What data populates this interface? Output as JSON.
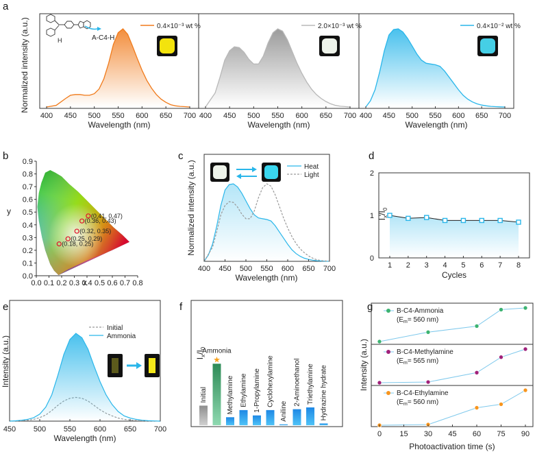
{
  "panel_labels": [
    "a",
    "b",
    "c",
    "d",
    "e",
    "f",
    "g"
  ],
  "chart_data": [
    {
      "id": "a",
      "type": "line",
      "ylabel": "Normalized intensity (a.u.)",
      "xlabel": "Wavelength (nm)",
      "xticks": [
        400,
        450,
        500,
        550,
        600,
        650,
        700
      ],
      "molecule_label": "H",
      "compound_label": "A-C4-H",
      "subplots": [
        {
          "legend": "0.4×10⁻³ wt %",
          "color": "#f07a1a",
          "emission_color": "#f3e30d",
          "x": [
            400,
            420,
            440,
            450,
            460,
            470,
            480,
            490,
            500,
            510,
            520,
            530,
            540,
            550,
            560,
            570,
            580,
            590,
            600,
            610,
            620,
            630,
            640,
            650,
            660,
            670,
            680,
            690,
            700
          ],
          "y": [
            0.0,
            0.02,
            0.11,
            0.15,
            0.16,
            0.16,
            0.15,
            0.15,
            0.17,
            0.23,
            0.36,
            0.56,
            0.8,
            0.95,
            1.0,
            0.93,
            0.78,
            0.62,
            0.47,
            0.34,
            0.24,
            0.16,
            0.1,
            0.06,
            0.03,
            0.015,
            0.008,
            0.004,
            0.0
          ]
        },
        {
          "legend": "2.0×10⁻³ wt %",
          "color": "#b8b8b8",
          "emission_color": "#eef3ea",
          "x": [
            400,
            420,
            430,
            440,
            450,
            460,
            470,
            480,
            490,
            500,
            510,
            520,
            530,
            540,
            550,
            560,
            570,
            580,
            590,
            600,
            610,
            620,
            630,
            640,
            650,
            660,
            670,
            680,
            690,
            700
          ],
          "y": [
            0.0,
            0.18,
            0.38,
            0.6,
            0.72,
            0.77,
            0.76,
            0.7,
            0.61,
            0.55,
            0.55,
            0.65,
            0.82,
            0.95,
            1.0,
            0.97,
            0.86,
            0.71,
            0.56,
            0.43,
            0.32,
            0.23,
            0.16,
            0.11,
            0.07,
            0.04,
            0.02,
            0.01,
            0.005,
            0.0
          ]
        },
        {
          "legend": "0.4×10⁻² wt %",
          "color": "#29b6ea",
          "emission_color": "#45cfe6",
          "x": [
            400,
            410,
            420,
            430,
            440,
            450,
            460,
            470,
            480,
            490,
            500,
            510,
            520,
            530,
            540,
            550,
            560,
            570,
            580,
            590,
            600,
            610,
            620,
            630,
            640,
            650,
            660,
            670,
            680,
            690,
            700
          ],
          "y": [
            0.0,
            0.08,
            0.22,
            0.45,
            0.72,
            0.92,
            0.99,
            1.0,
            0.96,
            0.88,
            0.78,
            0.68,
            0.6,
            0.56,
            0.55,
            0.54,
            0.52,
            0.46,
            0.38,
            0.3,
            0.22,
            0.15,
            0.1,
            0.065,
            0.04,
            0.025,
            0.015,
            0.008,
            0.004,
            0.002,
            0.0
          ]
        }
      ]
    },
    {
      "id": "b",
      "type": "scatter",
      "xlabel": "x",
      "ylabel": "y",
      "xlim": [
        0,
        0.8
      ],
      "ylim": [
        0,
        0.9
      ],
      "xticks": [
        "0.0",
        "0.1",
        "0.2",
        "0.3",
        "0.4",
        "0.5",
        "0.6",
        "0.7",
        "0.8"
      ],
      "yticks": [
        "0.0",
        "0.1",
        "0.2",
        "0.3",
        "0.4",
        "0.5",
        "0.6",
        "0.7",
        "0.8",
        "0.9"
      ],
      "points": [
        {
          "x": 0.41,
          "y": 0.47,
          "label": "(0.41, 0.47)"
        },
        {
          "x": 0.36,
          "y": 0.43,
          "label": "(0.36, 0.43)"
        },
        {
          "x": 0.32,
          "y": 0.35,
          "label": "(0.32, 0.35)"
        },
        {
          "x": 0.25,
          "y": 0.29,
          "label": "(0.25, 0.29)"
        },
        {
          "x": 0.18,
          "y": 0.25,
          "label": "(0.18, 0.25)"
        }
      ]
    },
    {
      "id": "c",
      "type": "line",
      "xlabel": "Wavelength (nm)",
      "ylabel": "Normalized intensity (a.u.)",
      "xticks": [
        400,
        450,
        500,
        550,
        600,
        650,
        700
      ],
      "series": [
        {
          "name": "Heat",
          "color": "#29b6ea",
          "dashed": false,
          "x": [
            400,
            410,
            420,
            430,
            440,
            450,
            460,
            470,
            480,
            490,
            500,
            510,
            520,
            530,
            540,
            550,
            560,
            570,
            580,
            590,
            600,
            610,
            620,
            630,
            640,
            650,
            660,
            670,
            680,
            690,
            700
          ],
          "y": [
            0.0,
            0.08,
            0.22,
            0.45,
            0.72,
            0.92,
            0.99,
            1.0,
            0.96,
            0.88,
            0.78,
            0.68,
            0.6,
            0.56,
            0.55,
            0.54,
            0.52,
            0.46,
            0.38,
            0.3,
            0.22,
            0.15,
            0.1,
            0.065,
            0.04,
            0.025,
            0.015,
            0.008,
            0.004,
            0.002,
            0.0
          ]
        },
        {
          "name": "Light",
          "color": "#999999",
          "dashed": true,
          "x": [
            400,
            420,
            430,
            440,
            450,
            460,
            470,
            480,
            490,
            500,
            510,
            520,
            530,
            540,
            550,
            560,
            570,
            580,
            590,
            600,
            610,
            620,
            630,
            640,
            650,
            660,
            670,
            680,
            690,
            700
          ],
          "y": [
            0.0,
            0.18,
            0.38,
            0.6,
            0.72,
            0.77,
            0.76,
            0.7,
            0.61,
            0.55,
            0.55,
            0.65,
            0.82,
            0.95,
            1.0,
            0.97,
            0.86,
            0.71,
            0.56,
            0.43,
            0.32,
            0.23,
            0.16,
            0.11,
            0.07,
            0.04,
            0.02,
            0.01,
            0.005,
            0.0
          ]
        }
      ],
      "legend": [
        "Heat",
        "Light"
      ]
    },
    {
      "id": "d",
      "type": "line",
      "xlabel": "Cycles",
      "ylabel": "I / I",
      "ylim": [
        0,
        2
      ],
      "yticks": [
        "0",
        "1",
        "2"
      ],
      "x": [
        1,
        2,
        3,
        4,
        5,
        6,
        7,
        8
      ],
      "y": [
        1.0,
        0.93,
        0.95,
        0.88,
        0.88,
        0.88,
        0.88,
        0.84
      ]
    },
    {
      "id": "e",
      "type": "line",
      "xlabel": "Wavelength (nm)",
      "ylabel": "Intensity (a.u.)",
      "xticks": [
        450,
        500,
        550,
        600,
        650,
        700
      ],
      "series": [
        {
          "name": "Initial",
          "color": "#999999",
          "dashed": true,
          "x": [
            450,
            460,
            470,
            480,
            490,
            500,
            510,
            520,
            530,
            540,
            550,
            560,
            570,
            580,
            590,
            600,
            610,
            620,
            630,
            640,
            650,
            660,
            670,
            680,
            690,
            700
          ],
          "y": [
            0,
            0.002,
            0.005,
            0.01,
            0.02,
            0.04,
            0.07,
            0.12,
            0.18,
            0.23,
            0.26,
            0.27,
            0.26,
            0.23,
            0.18,
            0.13,
            0.09,
            0.06,
            0.035,
            0.02,
            0.012,
            0.007,
            0.004,
            0.002,
            0.001,
            0
          ]
        },
        {
          "name": "Ammonia",
          "color": "#29b6ea",
          "dashed": false,
          "x": [
            450,
            460,
            470,
            480,
            490,
            500,
            510,
            520,
            530,
            540,
            550,
            560,
            570,
            580,
            590,
            600,
            610,
            620,
            630,
            640,
            650,
            660,
            670,
            680,
            690,
            700
          ],
          "y": [
            0,
            0.004,
            0.01,
            0.02,
            0.04,
            0.08,
            0.16,
            0.3,
            0.52,
            0.76,
            0.93,
            1.0,
            0.95,
            0.82,
            0.63,
            0.45,
            0.3,
            0.19,
            0.11,
            0.06,
            0.035,
            0.02,
            0.01,
            0.005,
            0.002,
            0
          ]
        }
      ],
      "legend": [
        "Initial",
        "Ammonia"
      ]
    },
    {
      "id": "f",
      "type": "bar",
      "ylabel": "I / I",
      "categories": [
        "Initial",
        "Ammonia",
        "Methylamine",
        "Ethylamine",
        "1-Propylamine",
        "Cyclohexylamine",
        "Aniline",
        "2-Aminoethanol",
        "Triethylamine",
        "Hydrazine hydrate"
      ],
      "values": [
        0.22,
        0.69,
        0.09,
        0.17,
        0.11,
        0.17,
        0.01,
        0.18,
        0.2,
        0.02
      ],
      "highlight": "Ammonia"
    },
    {
      "id": "g",
      "type": "line",
      "xlabel": "Photoactivation time (s)",
      "ylabel": "Intensity (a.u.)",
      "xticks": [
        0,
        15,
        30,
        45,
        60,
        75,
        90
      ],
      "series": [
        {
          "name": "B-C4-Ammonia",
          "note": "(E",
          "note_sub": "m",
          "note_end": "= 560 nm)",
          "color": "#3cb371",
          "x": [
            0,
            30,
            60,
            75,
            90
          ],
          "y": [
            0.0,
            0.28,
            0.46,
            0.95,
            1.0
          ]
        },
        {
          "name": "B-C4-Methylamine",
          "note": "(E",
          "note_sub": "m",
          "note_end": "= 565 nm)",
          "color": "#a0217a",
          "x": [
            0,
            30,
            60,
            75,
            90
          ],
          "y": [
            0.0,
            0.02,
            0.3,
            0.76,
            1.0
          ]
        },
        {
          "name": "B-C4-Ethylamine",
          "note": "(E",
          "note_sub": "m",
          "note_end": "= 560 nm)",
          "color": "#f7951e",
          "x": [
            0,
            30,
            60,
            75,
            90
          ],
          "y": [
            0.0,
            0.02,
            0.5,
            0.6,
            1.0
          ]
        }
      ]
    }
  ]
}
